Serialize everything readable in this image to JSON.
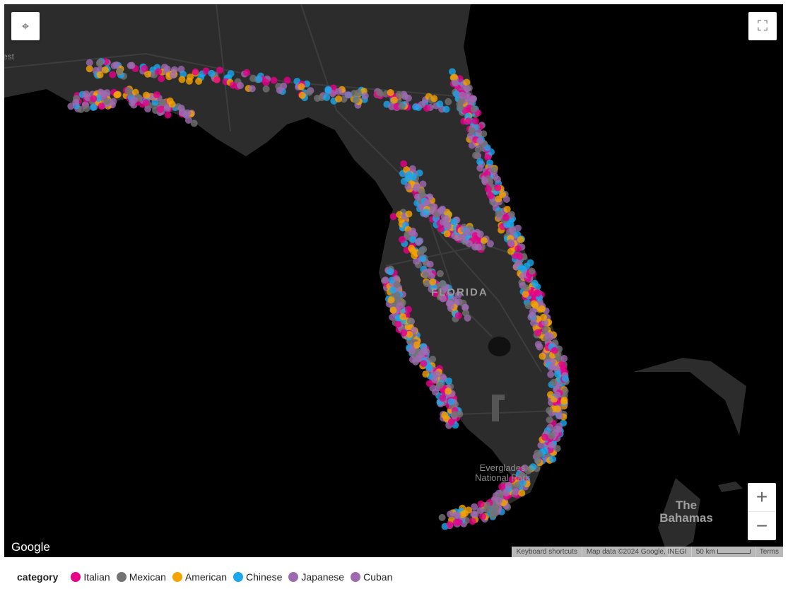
{
  "map": {
    "labels": {
      "state": "FLORIDA",
      "park": "Everglades National Park",
      "bahamas": "The Bahamas",
      "west_fragment": "est"
    },
    "logo": "Google",
    "attribution": {
      "shortcuts": "Keyboard shortcuts",
      "data": "Map data ©2024 Google, INEGI",
      "scale": "50 km",
      "terms": "Terms"
    },
    "controls": {
      "zoom_in": "+",
      "zoom_out": "−"
    }
  },
  "legend": {
    "title": "category",
    "items": [
      {
        "label": "Italian",
        "color": "#e7008a"
      },
      {
        "label": "Mexican",
        "color": "#737373"
      },
      {
        "label": "American",
        "color": "#f5a300"
      },
      {
        "label": "Chinese",
        "color": "#1aa7ec"
      },
      {
        "label": "Japanese",
        "color": "#9e6bb0"
      },
      {
        "label": "Cuban",
        "color": "#9e6bb0"
      }
    ]
  }
}
